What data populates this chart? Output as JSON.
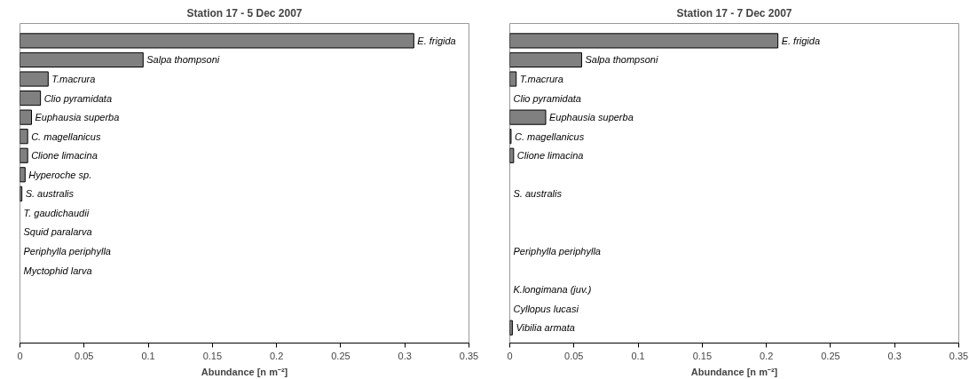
{
  "chart_data": [
    {
      "type": "bar",
      "orientation": "horizontal",
      "title": "Station 17 - 5 Dec 2007",
      "xlabel": "Abundance [n m⁻²]",
      "categories": [
        "E. frigida",
        "Salpa thompsoni",
        "T.macrura",
        "Clio pyramidata",
        "Euphausia superba",
        "C. magellanicus",
        "Clione limacina",
        "Hyperoche sp.",
        "S. australis",
        "T. gaudichaudii",
        "Squid paralarva",
        "Periphylla periphylla",
        "Myctophid larva",
        null,
        null,
        null
      ],
      "values": [
        0.307,
        0.096,
        0.022,
        0.016,
        0.009,
        0.006,
        0.006,
        0.004,
        0.0015,
        0,
        0,
        0,
        0,
        null,
        null,
        null
      ],
      "color": "#808080",
      "xlim": [
        0,
        0.35
      ],
      "xticks": [
        0,
        0.05,
        0.1,
        0.15,
        0.2,
        0.25,
        0.3,
        0.35
      ],
      "tick_labels": "x",
      "grid": false
    },
    {
      "type": "bar",
      "orientation": "horizontal",
      "title": "Station 17 - 7 Dec 2007",
      "xlabel": "Abundance [n m⁻²]",
      "categories": [
        "E. frigida",
        "Salpa thompsoni",
        "T.macrura",
        "Clio pyramidata",
        "Euphausia superba",
        "C. magellanicus",
        "Clione limacina",
        null,
        "S. australis",
        null,
        null,
        "Periphylla periphylla",
        null,
        "K.longimana (juv.)",
        "Cyllopus lucasi",
        "Vibilia armata"
      ],
      "values": [
        0.209,
        0.056,
        0.005,
        0,
        0.028,
        0.001,
        0.003,
        null,
        0,
        null,
        null,
        0,
        null,
        0,
        0,
        0.002
      ],
      "color": "#808080",
      "xlim": [
        0,
        0.35
      ],
      "xticks": [
        0,
        0.05,
        0.1,
        0.15,
        0.2,
        0.25,
        0.3,
        0.35
      ],
      "tick_labels": "x",
      "grid": false
    }
  ]
}
